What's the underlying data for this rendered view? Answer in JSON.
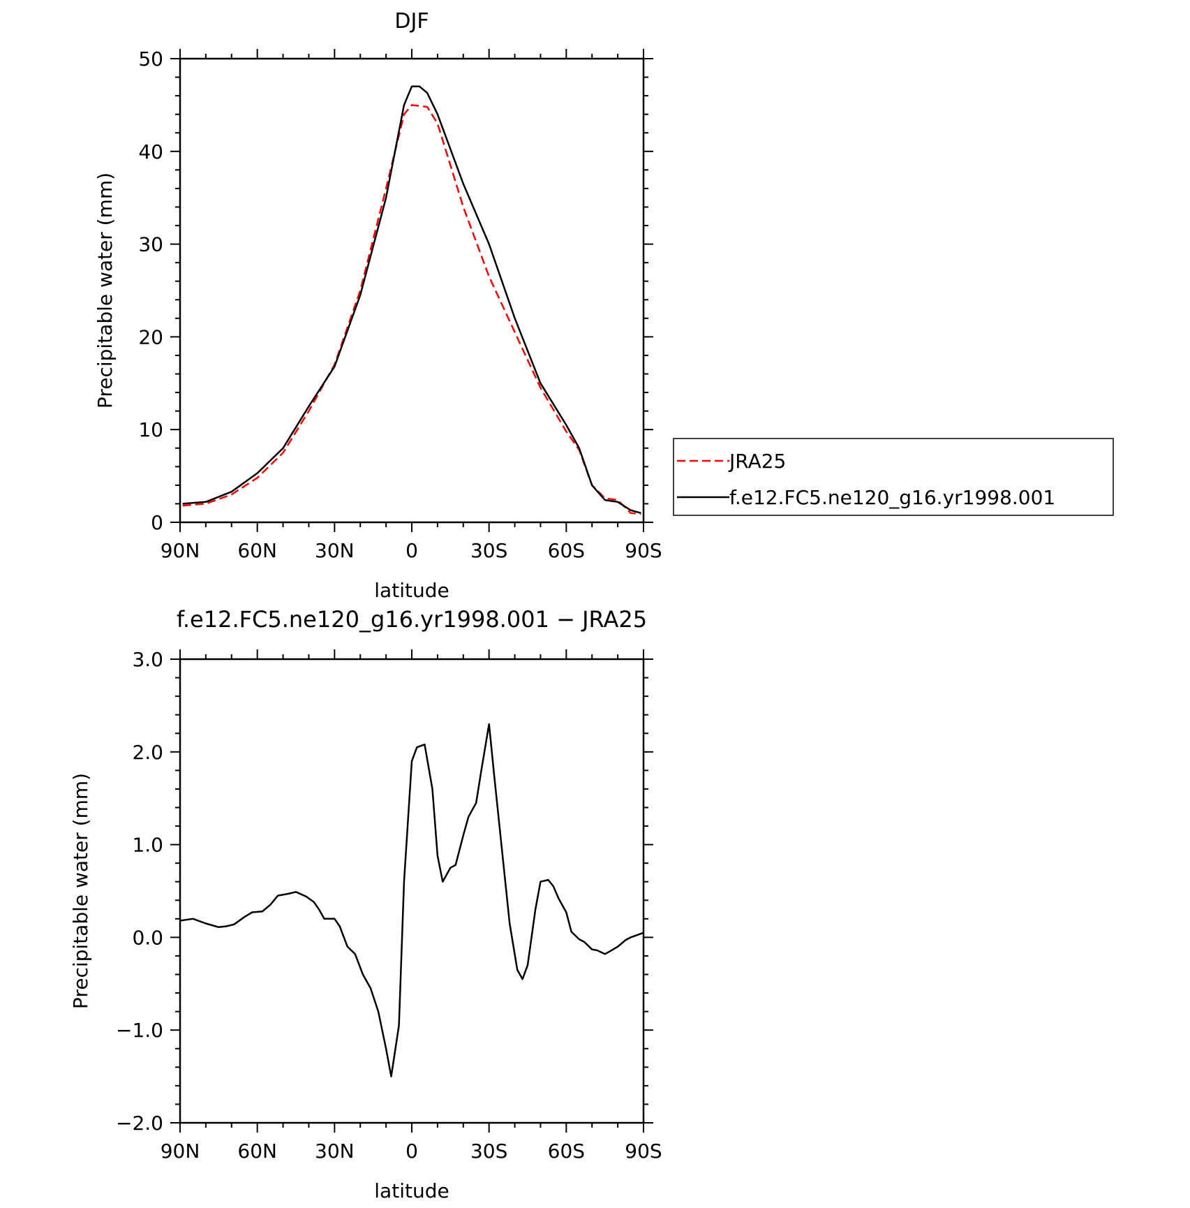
{
  "chart_data": [
    {
      "type": "line",
      "title": "DJF",
      "xlabel": "latitude",
      "ylabel": "Precipitable water (mm)",
      "xlim": [
        90,
        -90
      ],
      "ylim": [
        0,
        50
      ],
      "x_ticks": [
        90,
        60,
        30,
        0,
        -30,
        -60,
        -90
      ],
      "x_tick_labels": [
        "90N",
        "60N",
        "30N",
        "0",
        "30S",
        "60S",
        "90S"
      ],
      "y_ticks": [
        0,
        10,
        20,
        30,
        40,
        50
      ],
      "y_tick_labels": [
        "0",
        "10",
        "20",
        "30",
        "40",
        "50"
      ],
      "legend": "right-outside",
      "series": [
        {
          "name": "JRA25",
          "color": "#ff0000",
          "style": "dashed",
          "x": [
            89,
            80,
            70,
            60,
            50,
            40,
            30,
            20,
            10,
            3,
            0,
            -3,
            -6,
            -10,
            -20,
            -30,
            -40,
            -50,
            -60,
            -65,
            -70,
            -75,
            -80,
            -85,
            -89
          ],
          "y": [
            1.8,
            2.0,
            3.0,
            4.8,
            7.5,
            12.0,
            17.0,
            25.0,
            36.0,
            44.0,
            45.0,
            44.9,
            44.8,
            43.0,
            34.0,
            26.5,
            20.5,
            14.5,
            9.8,
            7.8,
            4.0,
            2.6,
            2.4,
            1.0,
            0.9
          ]
        },
        {
          "name": "f.e12.FC5.ne120_g16.yr1998.001",
          "color": "#000000",
          "style": "solid",
          "x": [
            89,
            80,
            70,
            60,
            50,
            40,
            30,
            20,
            10,
            3,
            0,
            -3,
            -6,
            -10,
            -20,
            -30,
            -40,
            -50,
            -60,
            -65,
            -70,
            -75,
            -80,
            -85,
            -89
          ],
          "y": [
            2.0,
            2.2,
            3.3,
            5.3,
            8.0,
            12.5,
            16.8,
            24.5,
            35.0,
            45.0,
            47.0,
            47.0,
            46.3,
            44.0,
            36.5,
            30.0,
            22.0,
            15.0,
            10.5,
            8.0,
            4.0,
            2.4,
            2.2,
            1.3,
            1.0
          ]
        }
      ]
    },
    {
      "type": "line",
      "title": "f.e12.FC5.ne120_g16.yr1998.001 − JRA25",
      "xlabel": "latitude",
      "ylabel": "Precipitable water (mm)",
      "xlim": [
        90,
        -90
      ],
      "ylim": [
        -2.0,
        3.0
      ],
      "x_ticks": [
        90,
        60,
        30,
        0,
        -30,
        -60,
        -90
      ],
      "x_tick_labels": [
        "90N",
        "60N",
        "30N",
        "0",
        "30S",
        "60S",
        "90S"
      ],
      "y_ticks": [
        -2.0,
        -1.0,
        0.0,
        1.0,
        2.0,
        3.0
      ],
      "y_tick_labels": [
        "−2.0",
        "−1.0",
        "0.0",
        "1.0",
        "2.0",
        "3.0"
      ],
      "series": [
        {
          "color": "#000000",
          "style": "solid",
          "x": [
            90,
            85,
            80,
            75,
            72,
            69,
            65,
            62,
            58,
            55,
            52,
            48,
            45,
            41,
            38,
            36,
            34,
            30,
            28,
            25,
            22,
            19,
            16,
            13,
            10,
            8,
            5,
            3,
            0,
            -2,
            -5,
            -8,
            -10,
            -12,
            -15,
            -17,
            -20,
            -22,
            -25,
            -27,
            -30,
            -32,
            -35,
            -38,
            -41,
            -43,
            -45,
            -48,
            -50,
            -53,
            -55,
            -57,
            -60,
            -62,
            -65,
            -67,
            -70,
            -72,
            -75,
            -77,
            -80,
            -83,
            -85,
            -88,
            -90
          ],
          "y": [
            0.18,
            0.2,
            0.15,
            0.11,
            0.12,
            0.14,
            0.22,
            0.27,
            0.28,
            0.35,
            0.45,
            0.47,
            0.49,
            0.44,
            0.38,
            0.3,
            0.2,
            0.2,
            0.12,
            -0.1,
            -0.18,
            -0.4,
            -0.55,
            -0.8,
            -1.2,
            -1.5,
            -0.95,
            0.6,
            1.9,
            2.05,
            2.08,
            1.6,
            0.88,
            0.6,
            0.75,
            0.78,
            1.1,
            1.3,
            1.45,
            1.8,
            2.3,
            1.75,
            0.95,
            0.15,
            -0.35,
            -0.45,
            -0.3,
            0.3,
            0.6,
            0.62,
            0.55,
            0.42,
            0.27,
            0.06,
            -0.02,
            -0.05,
            -0.13,
            -0.14,
            -0.18,
            -0.15,
            -0.1,
            -0.03,
            0.0,
            0.03,
            0.05
          ]
        }
      ]
    }
  ]
}
